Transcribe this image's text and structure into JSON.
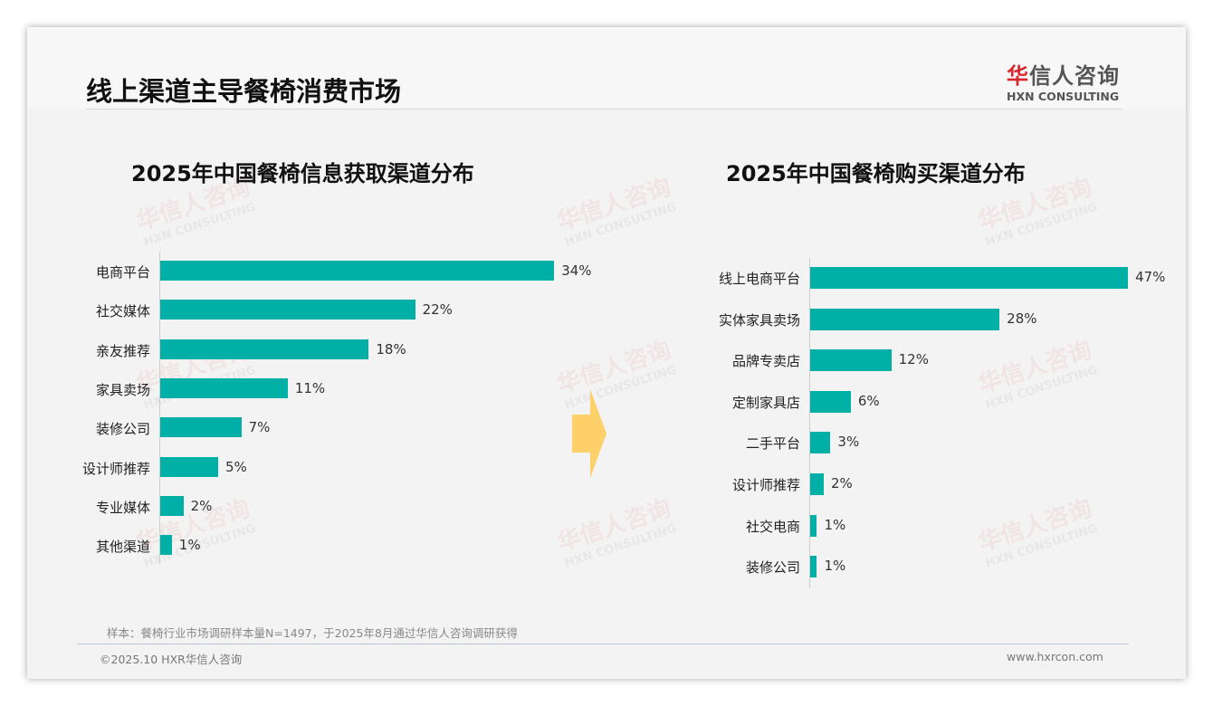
{
  "header": {
    "title": "线上渠道主导餐椅消费市场",
    "logo_cn_red": "华",
    "logo_cn": "信人咨询",
    "logo_en": "HXN CONSULTING"
  },
  "watermark": {
    "cn": "华信人咨询",
    "en": "HXN CONSULTING"
  },
  "colors": {
    "bar": "#00b0a6",
    "arrow": "#fdd06a"
  },
  "chart_data": [
    {
      "type": "bar",
      "orientation": "horizontal",
      "title": "2025年中国餐椅信息获取渠道分布",
      "categories": [
        "电商平台",
        "社交媒体",
        "亲友推荐",
        "家具卖场",
        "装修公司",
        "设计师推荐",
        "专业媒体",
        "其他渠道"
      ],
      "values": [
        34,
        22,
        18,
        11,
        7,
        5,
        2,
        1
      ],
      "labels": [
        "34%",
        "22%",
        "18%",
        "11%",
        "7%",
        "5%",
        "2%",
        "1%"
      ],
      "unit": "%"
    },
    {
      "type": "bar",
      "orientation": "horizontal",
      "title": "2025年中国餐椅购买渠道分布",
      "categories": [
        "线上电商平台",
        "实体家具卖场",
        "品牌专卖店",
        "定制家具店",
        "二手平台",
        "设计师推荐",
        "社交电商",
        "装修公司"
      ],
      "values": [
        47,
        28,
        12,
        6,
        3,
        2,
        1,
        1
      ],
      "labels": [
        "47%",
        "28%",
        "12%",
        "6%",
        "3%",
        "2%",
        "1%",
        "1%"
      ],
      "unit": "%"
    }
  ],
  "footer": {
    "note": "样本：餐椅行业市场调研样本量N=1497，于2025年8月通过华信人咨询调研获得",
    "copyright": "©2025.10 HXR华信人咨询",
    "website": "www.hxrcon.com"
  }
}
